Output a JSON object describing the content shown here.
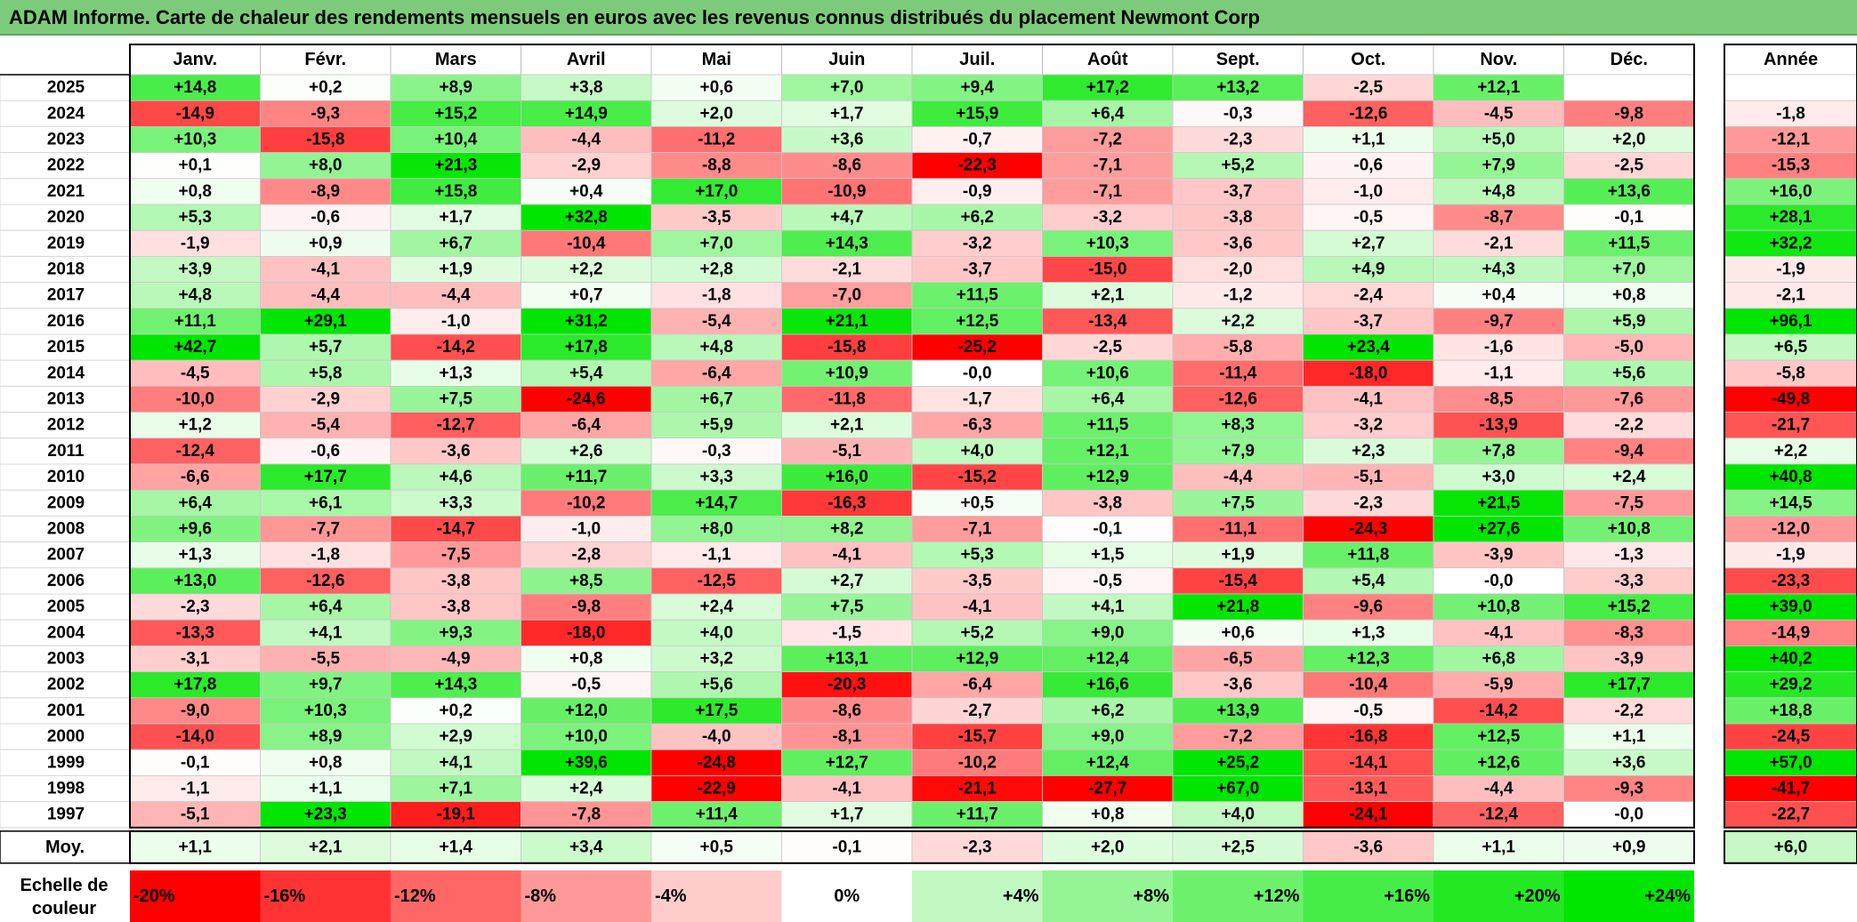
{
  "title": "ADAM Informe. Carte de chaleur des rendements mensuels en euros avec les revenus connus distribués du placement Newmont Corp",
  "chart_data": {
    "type": "heatmap",
    "columns": [
      "Janv.",
      "Févr.",
      "Mars",
      "Avril",
      "Mai",
      "Juin",
      "Juil.",
      "Août",
      "Sept.",
      "Oct.",
      "Nov.",
      "Déc."
    ],
    "year_header": "Année",
    "rows": [
      {
        "year": "2025",
        "values": [
          "+14,8",
          "+0,2",
          "+8,9",
          "+3,8",
          "+0,6",
          "+7,0",
          "+9,4",
          "+17,2",
          "+13,2",
          "-2,5",
          "+12,1",
          ""
        ],
        "annual": ""
      },
      {
        "year": "2024",
        "values": [
          "-14,9",
          "-9,3",
          "+15,2",
          "+14,9",
          "+2,0",
          "+1,7",
          "+15,9",
          "+6,4",
          "-0,3",
          "-12,6",
          "-4,5",
          "-9,8"
        ],
        "annual": "-1,8"
      },
      {
        "year": "2023",
        "values": [
          "+10,3",
          "-15,8",
          "+10,4",
          "-4,4",
          "-11,2",
          "+3,6",
          "-0,7",
          "-7,2",
          "-2,3",
          "+1,1",
          "+5,0",
          "+2,0"
        ],
        "annual": "-12,1"
      },
      {
        "year": "2022",
        "values": [
          "+0,1",
          "+8,0",
          "+21,3",
          "-2,9",
          "-8,8",
          "-8,6",
          "-22,3",
          "-7,1",
          "+5,2",
          "-0,6",
          "+7,9",
          "-2,5"
        ],
        "annual": "-15,3"
      },
      {
        "year": "2021",
        "values": [
          "+0,8",
          "-8,9",
          "+15,8",
          "+0,4",
          "+17,0",
          "-10,9",
          "-0,9",
          "-7,1",
          "-3,7",
          "-1,0",
          "+4,8",
          "+13,6"
        ],
        "annual": "+16,0"
      },
      {
        "year": "2020",
        "values": [
          "+5,3",
          "-0,6",
          "+1,7",
          "+32,8",
          "-3,5",
          "+4,7",
          "+6,2",
          "-3,2",
          "-3,8",
          "-0,5",
          "-8,7",
          "-0,1"
        ],
        "annual": "+28,1"
      },
      {
        "year": "2019",
        "values": [
          "-1,9",
          "+0,9",
          "+6,7",
          "-10,4",
          "+7,0",
          "+14,3",
          "-3,2",
          "+10,3",
          "-3,6",
          "+2,7",
          "-2,1",
          "+11,5"
        ],
        "annual": "+32,2"
      },
      {
        "year": "2018",
        "values": [
          "+3,9",
          "-4,1",
          "+1,9",
          "+2,2",
          "+2,8",
          "-2,1",
          "-3,7",
          "-15,0",
          "-2,0",
          "+4,9",
          "+4,3",
          "+7,0"
        ],
        "annual": "-1,9"
      },
      {
        "year": "2017",
        "values": [
          "+4,8",
          "-4,4",
          "-4,4",
          "+0,7",
          "-1,8",
          "-7,0",
          "+11,5",
          "+2,1",
          "-1,2",
          "-2,4",
          "+0,4",
          "+0,8"
        ],
        "annual": "-2,1"
      },
      {
        "year": "2016",
        "values": [
          "+11,1",
          "+29,1",
          "-1,0",
          "+31,2",
          "-5,4",
          "+21,1",
          "+12,5",
          "-13,4",
          "+2,2",
          "-3,7",
          "-9,7",
          "+5,9"
        ],
        "annual": "+96,1"
      },
      {
        "year": "2015",
        "values": [
          "+42,7",
          "+5,7",
          "-14,2",
          "+17,8",
          "+4,8",
          "-15,8",
          "-25,2",
          "-2,5",
          "-5,8",
          "+23,4",
          "-1,6",
          "-5,0"
        ],
        "annual": "+6,5"
      },
      {
        "year": "2014",
        "values": [
          "-4,5",
          "+5,8",
          "+1,3",
          "+5,4",
          "-6,4",
          "+10,9",
          "-0,0",
          "+10,6",
          "-11,4",
          "-18,0",
          "-1,1",
          "+5,6"
        ],
        "annual": "-5,8"
      },
      {
        "year": "2013",
        "values": [
          "-10,0",
          "-2,9",
          "+7,5",
          "-24,6",
          "+6,7",
          "-11,8",
          "-1,7",
          "+6,4",
          "-12,6",
          "-4,1",
          "-8,5",
          "-7,6"
        ],
        "annual": "-49,8"
      },
      {
        "year": "2012",
        "values": [
          "+1,2",
          "-5,4",
          "-12,7",
          "-6,4",
          "+5,9",
          "+2,1",
          "-6,3",
          "+11,5",
          "+8,3",
          "-3,2",
          "-13,9",
          "-2,2"
        ],
        "annual": "-21,7"
      },
      {
        "year": "2011",
        "values": [
          "-12,4",
          "-0,6",
          "-3,6",
          "+2,6",
          "-0,3",
          "-5,1",
          "+4,0",
          "+12,1",
          "+7,9",
          "+2,3",
          "+7,8",
          "-9,4"
        ],
        "annual": "+2,2"
      },
      {
        "year": "2010",
        "values": [
          "-6,6",
          "+17,7",
          "+4,6",
          "+11,7",
          "+3,3",
          "+16,0",
          "-15,2",
          "+12,9",
          "-4,4",
          "-5,1",
          "+3,0",
          "+2,4"
        ],
        "annual": "+40,8"
      },
      {
        "year": "2009",
        "values": [
          "+6,4",
          "+6,1",
          "+3,3",
          "-10,2",
          "+14,7",
          "-16,3",
          "+0,5",
          "-3,8",
          "+7,5",
          "-2,3",
          "+21,5",
          "-7,5"
        ],
        "annual": "+14,5"
      },
      {
        "year": "2008",
        "values": [
          "+9,6",
          "-7,7",
          "-14,7",
          "-1,0",
          "+8,0",
          "+8,2",
          "-7,1",
          "-0,1",
          "-11,1",
          "-24,3",
          "+27,6",
          "+10,8"
        ],
        "annual": "-12,0"
      },
      {
        "year": "2007",
        "values": [
          "+1,3",
          "-1,8",
          "-7,5",
          "-2,8",
          "-1,1",
          "-4,1",
          "+5,3",
          "+1,5",
          "+1,9",
          "+11,8",
          "-3,9",
          "-1,3"
        ],
        "annual": "-1,9"
      },
      {
        "year": "2006",
        "values": [
          "+13,0",
          "-12,6",
          "-3,8",
          "+8,5",
          "-12,5",
          "+2,7",
          "-3,5",
          "-0,5",
          "-15,4",
          "+5,4",
          "-0,0",
          "-3,3"
        ],
        "annual": "-23,3"
      },
      {
        "year": "2005",
        "values": [
          "-2,3",
          "+6,4",
          "-3,8",
          "-9,8",
          "+2,4",
          "+7,5",
          "-4,1",
          "+4,1",
          "+21,8",
          "-9,6",
          "+10,8",
          "+15,2"
        ],
        "annual": "+39,0"
      },
      {
        "year": "2004",
        "values": [
          "-13,3",
          "+4,1",
          "+9,3",
          "-18,0",
          "+4,0",
          "-1,5",
          "+5,2",
          "+9,0",
          "+0,6",
          "+1,3",
          "-4,1",
          "-8,3"
        ],
        "annual": "-14,9"
      },
      {
        "year": "2003",
        "values": [
          "-3,1",
          "-5,5",
          "-4,9",
          "+0,8",
          "+3,2",
          "+13,1",
          "+12,9",
          "+12,4",
          "-6,5",
          "+12,3",
          "+6,8",
          "-3,9"
        ],
        "annual": "+40,2"
      },
      {
        "year": "2002",
        "values": [
          "+17,8",
          "+9,7",
          "+14,3",
          "-0,5",
          "+5,6",
          "-20,3",
          "-6,4",
          "+16,6",
          "-3,6",
          "-10,4",
          "-5,9",
          "+17,7"
        ],
        "annual": "+29,2"
      },
      {
        "year": "2001",
        "values": [
          "-9,0",
          "+10,3",
          "+0,2",
          "+12,0",
          "+17,5",
          "-8,6",
          "-2,7",
          "+6,2",
          "+13,9",
          "-0,5",
          "-14,2",
          "-2,2"
        ],
        "annual": "+18,8"
      },
      {
        "year": "2000",
        "values": [
          "-14,0",
          "+8,9",
          "+2,9",
          "+10,0",
          "-4,0",
          "-8,1",
          "-15,7",
          "+9,0",
          "-7,2",
          "-16,8",
          "+12,5",
          "+1,1"
        ],
        "annual": "-24,5"
      },
      {
        "year": "1999",
        "values": [
          "-0,1",
          "+0,8",
          "+4,1",
          "+39,6",
          "-24,8",
          "+12,7",
          "-10,2",
          "+12,4",
          "+25,2",
          "-14,1",
          "+12,6",
          "+3,6"
        ],
        "annual": "+57,0"
      },
      {
        "year": "1998",
        "values": [
          "-1,1",
          "+1,1",
          "+7,1",
          "+2,4",
          "-22,9",
          "-4,1",
          "-21,1",
          "-27,7",
          "+67,0",
          "-13,1",
          "-4,4",
          "-9,3"
        ],
        "annual": "-41,7"
      },
      {
        "year": "1997",
        "values": [
          "-5,1",
          "+23,3",
          "-19,1",
          "-7,8",
          "+11,4",
          "+1,7",
          "+11,7",
          "+0,8",
          "+4,0",
          "-24,1",
          "-12,4",
          "-0,0"
        ],
        "annual": "-22,7"
      }
    ],
    "average_label": "Moy.",
    "averages": [
      "+1,1",
      "+2,1",
      "+1,4",
      "+3,4",
      "+0,5",
      "-0,1",
      "-2,3",
      "+2,0",
      "+2,5",
      "-3,6",
      "+1,1",
      "+0,9"
    ],
    "average_annual": "+6,0",
    "color_scale": {
      "label_line1": "Echelle de",
      "label_line2": "couleur",
      "stops": [
        "-20%",
        "-16%",
        "-12%",
        "-8%",
        "-4%",
        "0%",
        "+4%",
        "+8%",
        "+12%",
        "+16%",
        "+20%",
        "+24%"
      ],
      "stop_values": [
        -20,
        -16,
        -12,
        -8,
        -4,
        0,
        4,
        8,
        12,
        16,
        20,
        24
      ]
    },
    "colors": {
      "negative_max": "#ff0000",
      "neutral": "#ffffff",
      "positive_max": "#00e600",
      "title_bar": "#7ccb7a"
    }
  }
}
